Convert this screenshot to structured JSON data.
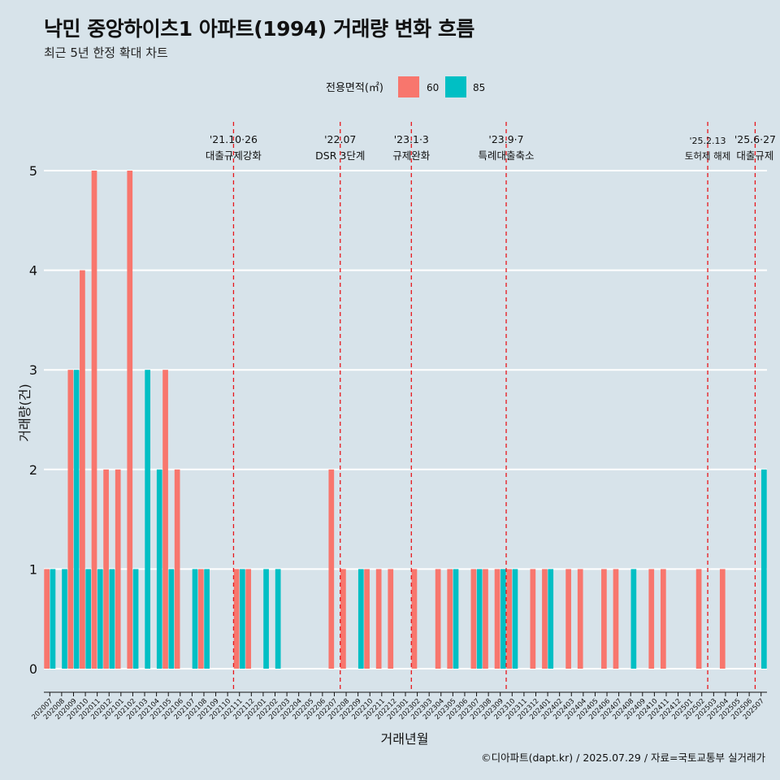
{
  "title": "낙민 중앙하이츠1 아파트(1994) 거래량 변화 흐름",
  "subtitle": "최근 5년 한정 확대 차트",
  "caption": "©디아파트(dapt.kr) / 2025.07.29 / 자료=국토교통부 실거래가",
  "legend": {
    "title": "전용면적(㎡)",
    "entries": [
      {
        "label": "60",
        "color": "#f8766d"
      },
      {
        "label": "85",
        "color": "#00bfc4"
      }
    ]
  },
  "chart_data": {
    "type": "bar",
    "xlabel": "거래년월",
    "ylabel": "거래량(건)",
    "ylim": [
      -0.25,
      5.4
    ],
    "yticks": [
      0,
      1,
      2,
      3,
      4,
      5
    ],
    "categories": [
      "202007",
      "202008",
      "202009",
      "202010",
      "202011",
      "202012",
      "202101",
      "202102",
      "202103",
      "202104",
      "202105",
      "202106",
      "202107",
      "202108",
      "202109",
      "202110",
      "202111",
      "202112",
      "202201",
      "202202",
      "202203",
      "202204",
      "202205",
      "202206",
      "202207",
      "202208",
      "202209",
      "202210",
      "202211",
      "202212",
      "202301",
      "202302",
      "202303",
      "202304",
      "202305",
      "202306",
      "202307",
      "202308",
      "202309",
      "202310",
      "202311",
      "202312",
      "202401",
      "202402",
      "202403",
      "202404",
      "202405",
      "202406",
      "202407",
      "202408",
      "202409",
      "202410",
      "202411",
      "202412",
      "202501",
      "202502",
      "202503",
      "202504",
      "202505",
      "202506",
      "202507"
    ],
    "series": [
      {
        "name": "60",
        "color": "#f8766d",
        "values": [
          1,
          0,
          3,
          4,
          5,
          2,
          2,
          5,
          0,
          0,
          3,
          2,
          0,
          1,
          0,
          0,
          1,
          1,
          0,
          0,
          0,
          0,
          0,
          0,
          2,
          1,
          0,
          1,
          1,
          1,
          0,
          1,
          0,
          1,
          1,
          0,
          1,
          1,
          1,
          1,
          0,
          1,
          1,
          0,
          1,
          1,
          0,
          1,
          1,
          0,
          0,
          1,
          1,
          0,
          0,
          1,
          0,
          1,
          0,
          0,
          0
        ]
      },
      {
        "name": "85",
        "color": "#00bfc4",
        "values": [
          1,
          1,
          3,
          1,
          1,
          1,
          0,
          1,
          3,
          2,
          1,
          0,
          1,
          1,
          0,
          0,
          1,
          0,
          1,
          1,
          0,
          0,
          0,
          0,
          0,
          0,
          1,
          0,
          0,
          0,
          0,
          0,
          0,
          0,
          1,
          0,
          1,
          0,
          1,
          1,
          0,
          0,
          1,
          0,
          0,
          0,
          0,
          0,
          0,
          1,
          0,
          0,
          0,
          0,
          0,
          0,
          0,
          0,
          0,
          0,
          2
        ]
      }
    ],
    "events": [
      {
        "date": "'21.10·26",
        "label": "대출규제강화",
        "index": 15.5
      },
      {
        "date": "'22.07",
        "label": "DSR 3단계",
        "index": 24.5
      },
      {
        "date": "'23.1·3",
        "label": "규제완화",
        "index": 30.5
      },
      {
        "date": "'23.9·7",
        "label": "특례대출축소",
        "index": 38.5
      },
      {
        "date": "'25.2.13",
        "label": "토허제 해제",
        "index": 55.5
      },
      {
        "date": "'25.6·27",
        "label": "대출규제",
        "index": 59.5
      }
    ]
  }
}
